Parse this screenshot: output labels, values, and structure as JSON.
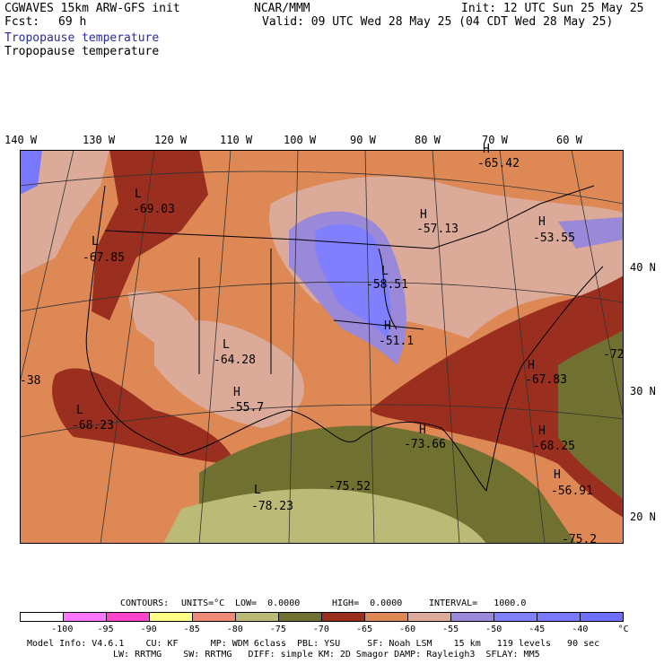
{
  "header": {
    "model": "CGWAVES 15km ARW-GFS init",
    "fcst_label": "Fcst:",
    "fcst_value": "69 h",
    "center": "NCAR/MMM",
    "init": "Init: 12 UTC Sun 25 May 25",
    "valid": "Valid: 09 UTC Wed 28 May 25 (04 CDT Wed 28 May 25)",
    "field1": "Tropopause temperature",
    "field2": "Tropopause temperature"
  },
  "axes": {
    "top": [
      "140 W",
      "130 W",
      "120 W",
      "110 W",
      "100 W",
      "90 W",
      "80 W",
      "70 W",
      "60 W"
    ],
    "right": [
      "40 N",
      "30 N",
      "20 N"
    ]
  },
  "map_labels": [
    {
      "type": "L",
      "value": "-69.03"
    },
    {
      "type": "L",
      "value": "-67.85"
    },
    {
      "type": "H",
      "value": "-57.13"
    },
    {
      "type": "H",
      "value": "-65.42"
    },
    {
      "type": "H",
      "value": "-53.55"
    },
    {
      "type": "L",
      "value": "-58.51"
    },
    {
      "type": "H",
      "value": "-51.1"
    },
    {
      "type": "L",
      "value": "-64.28"
    },
    {
      "type": "H",
      "value": "-55.7"
    },
    {
      "type": "H",
      "value": "-67.83"
    },
    {
      "type": "L",
      "value": "-68.23"
    },
    {
      "type": "H",
      "value": "-73.66"
    },
    {
      "type": "H",
      "value": "-68.25"
    },
    {
      "type": "",
      "value": "-75.52"
    },
    {
      "type": "L",
      "value": "-78.23"
    },
    {
      "type": "H",
      "value": "-56.91"
    },
    {
      "type": "",
      "value": "-38"
    },
    {
      "type": "",
      "value": "-72"
    },
    {
      "type": "",
      "value": "-75.2"
    }
  ],
  "contours": {
    "label": "CONTOURS:",
    "units": "UNITS=°C",
    "low": "LOW=  0.0000",
    "high": "HIGH=  0.0000",
    "interval": "INTERVAL=   1000.0"
  },
  "colorbar": {
    "colors": [
      "#ffffff",
      "#ff77ff",
      "#ff44cc",
      "#ffff88",
      "#ee8877",
      "#bbbb77",
      "#707030",
      "#9b2f1f",
      "#dd8855",
      "#dcaa99",
      "#9a88d8",
      "#8080ff",
      "#7878ff",
      "#6f6fff"
    ],
    "ticks": [
      "-100",
      "-95",
      "-90",
      "-85",
      "-80",
      "-75",
      "-70",
      "-65",
      "-60",
      "-55",
      "-50",
      "-45",
      "-40",
      "°C"
    ]
  },
  "footer": {
    "line1": "Model Info: V4.6.1    CU: KF      MP: WDM 6class  PBL: YSU     SF: Noah LSM    15 km   119 levels   90 sec",
    "line2": "LW: RRTMG    SW: RRTMG   DIFF: simple KM: 2D Smagor DAMP: Rayleigh3  SFLAY: MM5"
  }
}
